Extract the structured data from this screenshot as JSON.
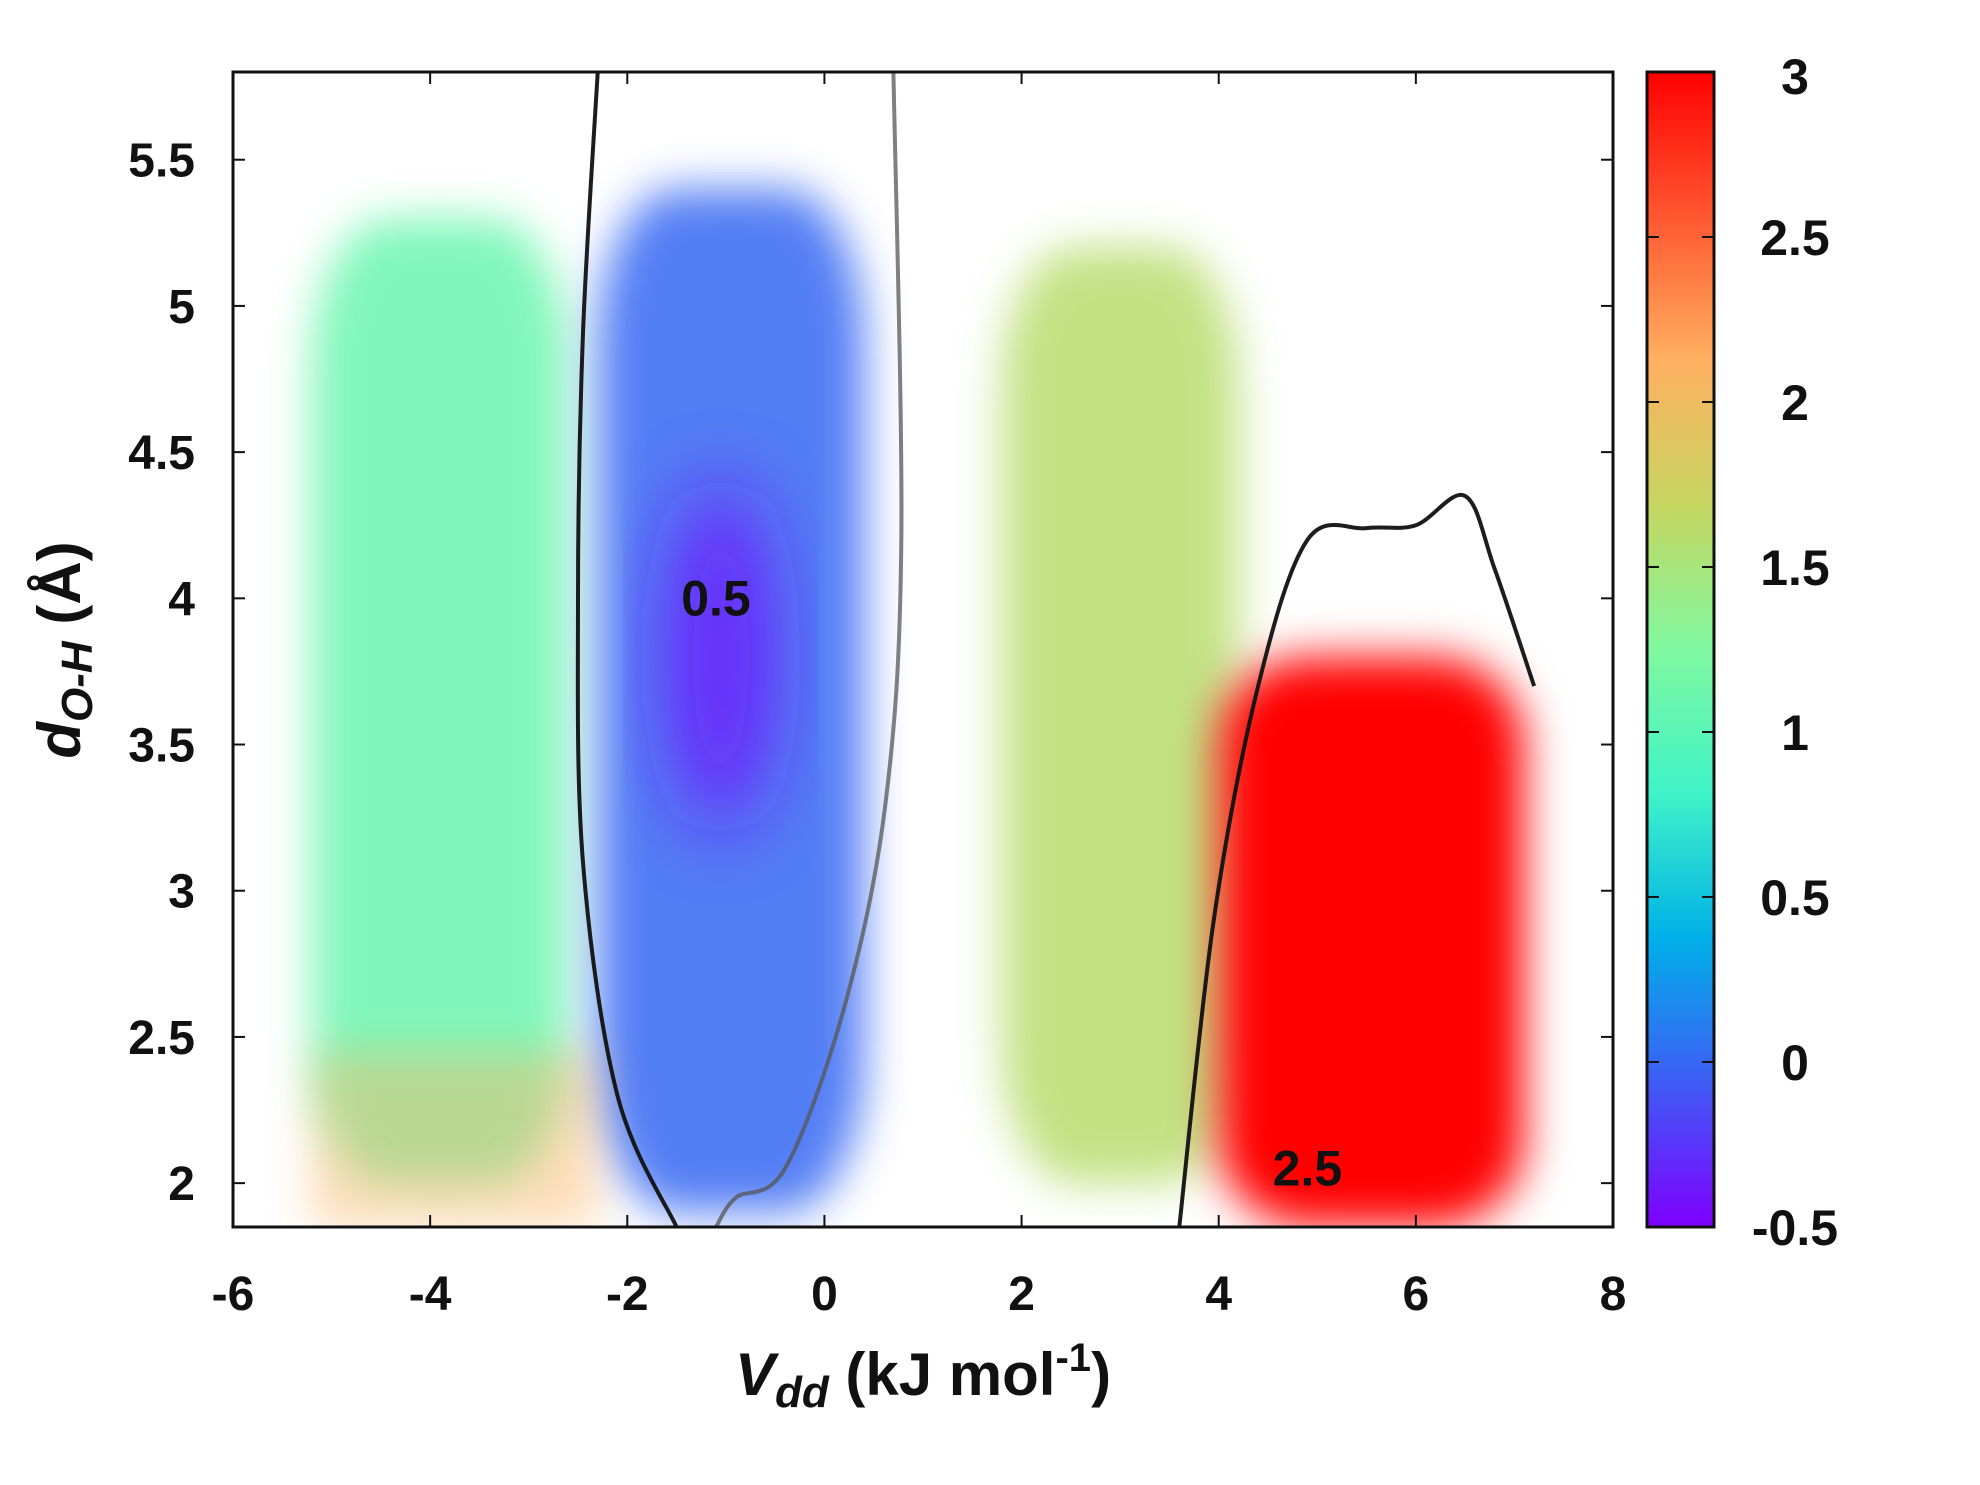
{
  "chart_data": {
    "type": "heatmap",
    "title": "",
    "xlabel": {
      "main": "V",
      "sub": "dd",
      "unit_pre": " (kJ mol",
      "unit_sup": "-1",
      "unit_post": ")"
    },
    "ylabel": {
      "main": "d",
      "sub": "O-H",
      "unit": " (Å)"
    },
    "xlim": [
      -6,
      8
    ],
    "ylim": [
      1.85,
      5.8
    ],
    "x_ticks": [
      "-6",
      "-4",
      "-2",
      "0",
      "2",
      "4",
      "6",
      "8"
    ],
    "y_ticks": [
      "2",
      "2.5",
      "3",
      "3.5",
      "4",
      "4.5",
      "5",
      "5.5"
    ],
    "colorbar": {
      "range": [
        -0.5,
        3
      ],
      "ticks": [
        "3",
        "2.5",
        "2",
        "1.5",
        "1",
        "0.5",
        "0",
        "-0.5"
      ],
      "colors": [
        "#7f00ff",
        "#3f5cf5",
        "#00b0e8",
        "#3ff3c8",
        "#80f8a0",
        "#c6d660",
        "#ffb060",
        "#ff5730",
        "#ff0000"
      ]
    },
    "grid": false,
    "regions": [
      {
        "x": [
          -5.2,
          -2.6
        ],
        "y": [
          2.0,
          5.3
        ],
        "value": 1.1,
        "note": "cyan-green band"
      },
      {
        "x": [
          -2.3,
          0.4
        ],
        "y": [
          1.9,
          5.4
        ],
        "value": 0.0,
        "note": "blue well"
      },
      {
        "x": [
          -1.6,
          -0.5
        ],
        "y": [
          3.2,
          4.4
        ],
        "value": -0.4,
        "note": "violet core"
      },
      {
        "x": [
          1.8,
          4.2
        ],
        "y": [
          2.0,
          5.2
        ],
        "value": 1.6,
        "note": "yellow-green band"
      },
      {
        "x": [
          4.0,
          7.1
        ],
        "y": [
          1.85,
          3.8
        ],
        "value": 3.0,
        "note": "red region"
      }
    ],
    "contours": [
      {
        "level": "0.5",
        "points": [
          [
            -2.3,
            5.8
          ],
          [
            -2.45,
            4.9
          ],
          [
            -2.5,
            4.0
          ],
          [
            -2.45,
            3.1
          ],
          [
            -2.1,
            2.3
          ],
          [
            -1.5,
            1.85
          ]
        ]
      },
      {
        "level": "",
        "points": [
          [
            0.7,
            5.8
          ],
          [
            0.78,
            4.2
          ],
          [
            0.62,
            3.3
          ],
          [
            0.2,
            2.6
          ],
          [
            -0.4,
            2.05
          ],
          [
            -0.9,
            1.95
          ],
          [
            -1.1,
            1.85
          ]
        ]
      },
      {
        "level": "2.5",
        "points": [
          [
            3.6,
            1.85
          ],
          [
            3.95,
            2.9
          ],
          [
            4.4,
            3.7
          ],
          [
            4.9,
            4.2
          ],
          [
            5.5,
            4.24
          ],
          [
            6.0,
            4.25
          ],
          [
            6.5,
            4.35
          ],
          [
            6.8,
            4.1
          ],
          [
            7.2,
            3.7
          ]
        ]
      }
    ],
    "contour_labels": [
      {
        "text": "0.5",
        "x": -1.1,
        "y": 4.0
      },
      {
        "text": "2.5",
        "x": 4.9,
        "y": 2.05
      }
    ]
  }
}
